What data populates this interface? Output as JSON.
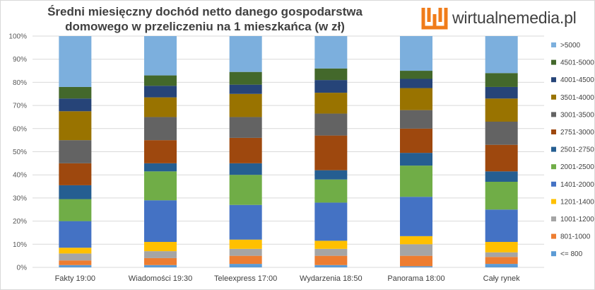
{
  "chart_data": {
    "type": "bar",
    "stacked": true,
    "title": "Średni miesięczny dochód netto danego gospodarstwa domowego w przeliczeniu na 1 mieszkańca (w zł)",
    "xlabel": "",
    "ylabel": "",
    "ylim": [
      0,
      100
    ],
    "y_ticks": [
      "0%",
      "10%",
      "20%",
      "30%",
      "40%",
      "50%",
      "60%",
      "70%",
      "80%",
      "90%",
      "100%"
    ],
    "grid": true,
    "legend_position": "right",
    "categories": [
      "Fakty 19:00",
      "Wiadomości 19:30",
      "Teleexpress 17:00",
      "Wydarzenia 18:50",
      "Panorama 18:00",
      "Cały rynek"
    ],
    "series": [
      {
        "name": "<= 800",
        "color": "#5b9bd5",
        "values": [
          1,
          1,
          1.5,
          1,
          0.5,
          1.5
        ]
      },
      {
        "name": "801-1000",
        "color": "#ed7d31",
        "values": [
          2,
          3,
          3.5,
          4,
          4.5,
          3
        ]
      },
      {
        "name": "1001-1200",
        "color": "#a5a5a5",
        "values": [
          3,
          3,
          3,
          3,
          5,
          2
        ]
      },
      {
        "name": "1201-1400",
        "color": "#ffc000",
        "values": [
          2.5,
          4,
          4,
          3.5,
          3.5,
          4.5
        ]
      },
      {
        "name": "1401-2000",
        "color": "#4472c4",
        "values": [
          11.5,
          18,
          15,
          16.5,
          17,
          14
        ]
      },
      {
        "name": "2001-2500",
        "color": "#70ad47",
        "values": [
          9.5,
          12.5,
          13,
          10,
          13.5,
          12
        ]
      },
      {
        "name": "2501-2750",
        "color": "#255e91",
        "values": [
          6,
          3.5,
          5,
          4,
          5.5,
          4.5
        ]
      },
      {
        "name": "2751-3000",
        "color": "#9e480e",
        "values": [
          9.5,
          10,
          11,
          15,
          10.5,
          11.5
        ]
      },
      {
        "name": "3001-3500",
        "color": "#636363",
        "values": [
          10,
          10,
          9,
          9.5,
          8,
          10
        ]
      },
      {
        "name": "3501-4000",
        "color": "#997300",
        "values": [
          12.5,
          8.5,
          10,
          9,
          9.5,
          10
        ]
      },
      {
        "name": "4001-4500",
        "color": "#264478",
        "values": [
          5.5,
          5,
          4,
          5.5,
          4,
          5
        ]
      },
      {
        "name": "4501-5000",
        "color": "#43682b",
        "values": [
          5,
          4.5,
          5.5,
          5,
          3.5,
          6
        ]
      },
      {
        "name": ">5000",
        "color": "#7cafdd",
        "values": [
          22,
          17,
          15.5,
          14,
          15,
          16
        ]
      }
    ]
  },
  "logo": {
    "text": "wirtualnemedia.pl",
    "mark_color": "#f07c1a"
  },
  "header": {
    "title_line1": "Średni miesięczny dochód netto danego gospodarstwa",
    "title_line2": "domowego w przeliczeniu na 1 mieszkańca (w zł)"
  }
}
